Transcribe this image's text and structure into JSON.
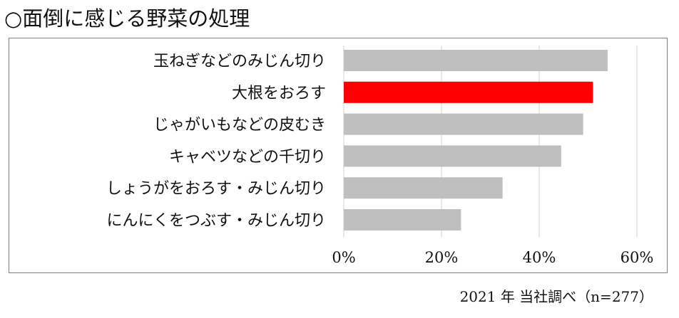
{
  "title": "○面倒に感じる野菜の処理",
  "footer": "2021 年 当社調べ（n=277）",
  "chart_data": {
    "type": "bar",
    "orientation": "horizontal",
    "categories": [
      "玉ねぎなどのみじん切り",
      "大根をおろす",
      "じゃがいもなどの皮むき",
      "キャベツなどの千切り",
      "しょうがをおろす・みじん切り",
      "にんにくをつぶす・みじん切り"
    ],
    "values": [
      54,
      51,
      49,
      44.5,
      32.5,
      24
    ],
    "xlim": [
      0,
      60
    ],
    "ticks": [
      0,
      20,
      40,
      60
    ],
    "tick_labels": [
      "0%",
      "20%",
      "40%",
      "60%"
    ],
    "grid": true,
    "colors": {
      "bar": "#bfbfbf",
      "highlight": "#ff0000",
      "grid": "#d9d9d9",
      "frame": "#7f7f7f"
    },
    "highlight_category": "大根をおろす"
  }
}
